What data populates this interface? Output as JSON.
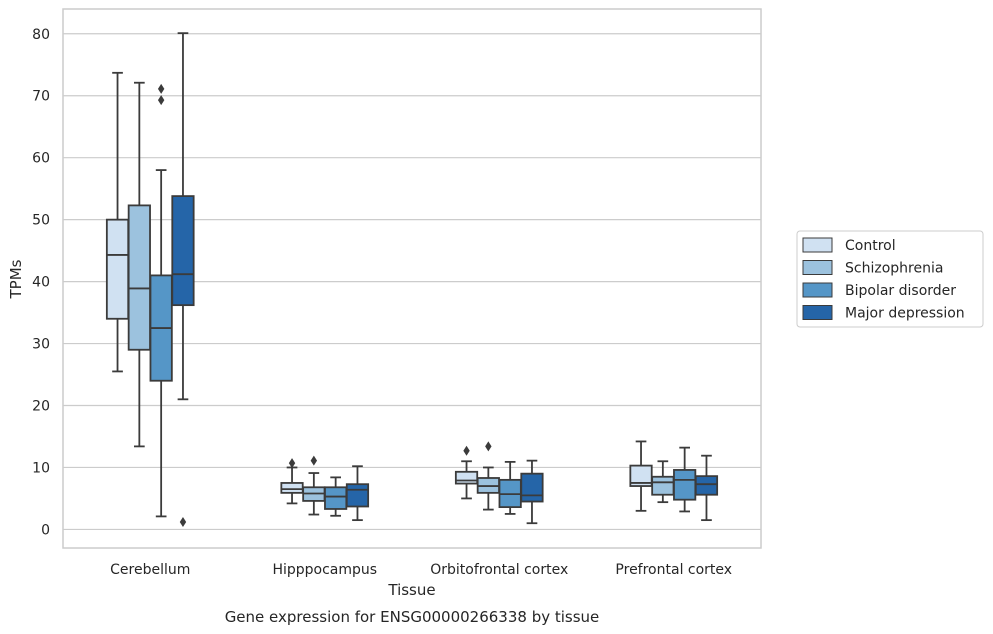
{
  "chart_data": {
    "type": "box",
    "title": "",
    "caption": "Gene expression for ENSG00000266338 by tissue",
    "xlabel": "Tissue",
    "ylabel": "TPMs",
    "ylim": [
      -3,
      84
    ],
    "yticks": [
      0,
      10,
      20,
      30,
      40,
      50,
      60,
      70,
      80
    ],
    "grid": "horizontal",
    "legend_position": "right",
    "categories": [
      "Cerebellum",
      "Hipppocampus",
      "Orbitofrontal cortex",
      "Prefrontal cortex"
    ],
    "series": [
      {
        "name": "Control",
        "color": "#d0e1f2",
        "boxes": [
          {
            "q1": 34.0,
            "median": 44.3,
            "q3": 50.0,
            "whislo": 25.5,
            "whishi": 73.7,
            "fliers": []
          },
          {
            "q1": 5.9,
            "median": 6.5,
            "q3": 7.5,
            "whislo": 4.2,
            "whishi": 10.0,
            "fliers": [
              10.7
            ]
          },
          {
            "q1": 7.4,
            "median": 7.9,
            "q3": 9.3,
            "whislo": 5.0,
            "whishi": 11.0,
            "fliers": [
              12.7
            ]
          },
          {
            "q1": 7.0,
            "median": 7.5,
            "q3": 10.3,
            "whislo": 3.0,
            "whishi": 14.2,
            "fliers": []
          }
        ]
      },
      {
        "name": "Schizophrenia",
        "color": "#9cc2de",
        "boxes": [
          {
            "q1": 29.0,
            "median": 38.9,
            "q3": 52.3,
            "whislo": 13.4,
            "whishi": 72.1,
            "fliers": []
          },
          {
            "q1": 4.6,
            "median": 5.8,
            "q3": 6.8,
            "whislo": 2.4,
            "whishi": 9.1,
            "fliers": [
              11.1
            ]
          },
          {
            "q1": 5.9,
            "median": 7.0,
            "q3": 8.3,
            "whislo": 3.2,
            "whishi": 10.0,
            "fliers": [
              13.4
            ]
          },
          {
            "q1": 5.6,
            "median": 7.6,
            "q3": 8.5,
            "whislo": 4.4,
            "whishi": 11.0,
            "fliers": []
          }
        ]
      },
      {
        "name": "Bipolar disorder",
        "color": "#5596c7",
        "boxes": [
          {
            "q1": 24.0,
            "median": 32.5,
            "q3": 41.0,
            "whislo": 2.1,
            "whishi": 58.0,
            "fliers": [
              69.3,
              71.1
            ]
          },
          {
            "q1": 3.3,
            "median": 5.3,
            "q3": 6.8,
            "whislo": 2.2,
            "whishi": 8.4,
            "fliers": []
          },
          {
            "q1": 3.6,
            "median": 5.7,
            "q3": 8.0,
            "whislo": 2.5,
            "whishi": 10.9,
            "fliers": []
          },
          {
            "q1": 4.8,
            "median": 8.0,
            "q3": 9.6,
            "whislo": 2.9,
            "whishi": 13.2,
            "fliers": []
          }
        ]
      },
      {
        "name": "Major depression",
        "color": "#2565a8",
        "boxes": [
          {
            "q1": 36.2,
            "median": 41.2,
            "q3": 53.8,
            "whislo": 21.0,
            "whishi": 80.1,
            "fliers": [
              1.2
            ]
          },
          {
            "q1": 3.7,
            "median": 6.4,
            "q3": 7.3,
            "whislo": 1.5,
            "whishi": 10.2,
            "fliers": []
          },
          {
            "q1": 4.5,
            "median": 5.5,
            "q3": 9.0,
            "whislo": 1.0,
            "whishi": 11.1,
            "fliers": []
          },
          {
            "q1": 5.6,
            "median": 7.3,
            "q3": 8.6,
            "whislo": 1.5,
            "whishi": 11.9,
            "fliers": []
          }
        ]
      }
    ]
  }
}
